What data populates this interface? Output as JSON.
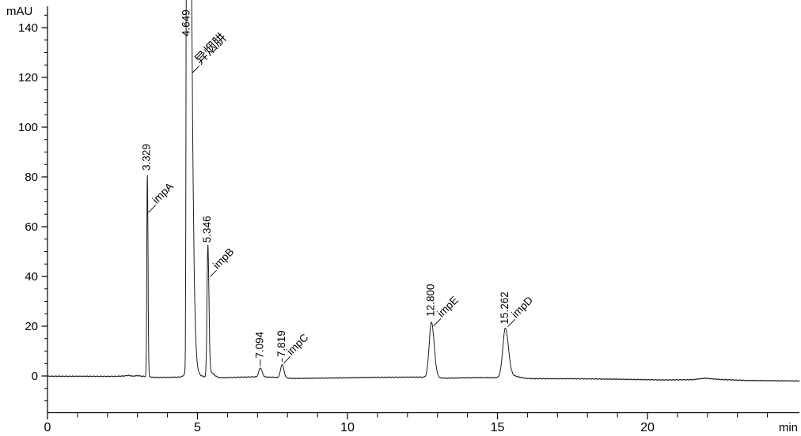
{
  "chart_data": {
    "type": "line",
    "title": "",
    "ylabel": "mAU",
    "xlabel": "min",
    "xlim": [
      0,
      25.07
    ],
    "ylim": [
      -14.6,
      148.6
    ],
    "grid": false,
    "legend": "none",
    "trace_color": "#1e1e1e",
    "axis_color": "#000000",
    "x_major_ticks": [
      0,
      5,
      10,
      15,
      20
    ],
    "x_minor_tick_step": 1,
    "x_minor_tick_range": [
      1,
      24
    ],
    "y_major_ticks": [
      0,
      20,
      40,
      60,
      80,
      100,
      120,
      140
    ],
    "y_minor_tick_step": 5,
    "y_minor_tick_range": [
      -10,
      145
    ],
    "peaks": [
      {
        "rt": 3.329,
        "rt_label": "3.329",
        "name": "impA",
        "height_mau": 81,
        "sigma_left": 0.018,
        "sigma_right": 0.022,
        "clipped": false,
        "rt_label_gap": 5,
        "leader_from_apex": [
          1.5,
          48
        ],
        "leader_len": 13
      },
      {
        "rt": 4.649,
        "rt_label": "4.649",
        "name": "异烟肼",
        "height_mau": 400,
        "sigma_left": 0.02,
        "sigma_right": 0.113,
        "clipped": true,
        "rt_label_gap": 5,
        "leader_from_apex": [
          7,
          92
        ],
        "leader_len": 12
      },
      {
        "rt": 5.346,
        "rt_label": "5.346",
        "name": "impB",
        "height_mau": 52,
        "sigma_left": 0.028,
        "sigma_right": 0.035,
        "clipped": false,
        "rt_label_gap": 5,
        "leader_from_apex": [
          3,
          38
        ],
        "leader_len": 11
      },
      {
        "rt": 7.094,
        "rt_label": "7.094",
        "name": "",
        "height_mau": 3.6,
        "sigma_left": 0.05,
        "sigma_right": 0.06,
        "clipped": false,
        "rt_label_gap": 11,
        "leader_from_apex": [
          0,
          0
        ],
        "leader_len": 0
      },
      {
        "rt": 7.819,
        "rt_label": "7.819",
        "name": "impC",
        "height_mau": 5.4,
        "sigma_left": 0.05,
        "sigma_right": 0.06,
        "clipped": false,
        "rt_label_gap": 7,
        "leader_from_apex": [
          2,
          1
        ],
        "leader_len": 12
      },
      {
        "rt": 12.8,
        "rt_label": "12.800",
        "name": "impE",
        "height_mau": 22.3,
        "sigma_left": 0.075,
        "sigma_right": 0.09,
        "clipped": false,
        "rt_label_gap": 5,
        "leader_from_apex": [
          2.5,
          7
        ],
        "leader_len": 13
      },
      {
        "rt": 15.262,
        "rt_label": "15.262",
        "name": "impD",
        "height_mau": 19.2,
        "sigma_left": 0.085,
        "sigma_right": 0.1,
        "clipped": false,
        "rt_label_gap": 5,
        "leader_from_apex": [
          3,
          -2
        ],
        "leader_len": 13
      }
    ],
    "tail_components": [
      {
        "rt": 4.72,
        "height_mau": 5.0,
        "sigma_left": 0.09,
        "sigma_right": 0.18
      },
      {
        "rt": 5.4,
        "height_mau": 2.2,
        "sigma_left": 0.05,
        "sigma_right": 0.14
      },
      {
        "rt": 15.35,
        "height_mau": 1.2,
        "sigma_left": 0.1,
        "sigma_right": 0.3
      }
    ],
    "baseline_drift_points": [
      [
        0,
        -0.1
      ],
      [
        2.3,
        -0.15
      ],
      [
        2.55,
        0.0
      ],
      [
        2.7,
        0.25
      ],
      [
        2.85,
        -0.1
      ],
      [
        3.0,
        0.15
      ],
      [
        3.15,
        -0.1
      ],
      [
        3.6,
        -0.6
      ],
      [
        4.3,
        -0.5
      ],
      [
        4.55,
        -0.3
      ],
      [
        5.05,
        -0.2
      ],
      [
        5.7,
        -0.8
      ],
      [
        6.5,
        -0.45
      ],
      [
        7.0,
        -0.35
      ],
      [
        7.5,
        -0.5
      ],
      [
        8.2,
        -1.0
      ],
      [
        9.5,
        -0.8
      ],
      [
        11.0,
        -0.55
      ],
      [
        12.4,
        -0.45
      ],
      [
        13.3,
        -0.9
      ],
      [
        14.3,
        -0.65
      ],
      [
        15.0,
        -0.7
      ],
      [
        16.0,
        -1.1
      ],
      [
        17.5,
        -1.1
      ],
      [
        19.0,
        -1.3
      ],
      [
        20.5,
        -1.6
      ],
      [
        21.5,
        -1.5
      ],
      [
        21.9,
        -0.9
      ],
      [
        22.4,
        -1.4
      ],
      [
        23.3,
        -1.8
      ],
      [
        25.07,
        -2.0
      ]
    ]
  }
}
